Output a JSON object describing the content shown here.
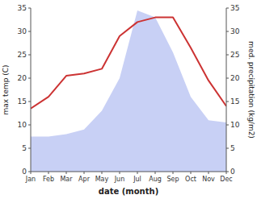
{
  "chart_data": {
    "type": "line",
    "categories": [
      "Jan",
      "Feb",
      "Mar",
      "Apr",
      "May",
      "Jun",
      "Jul",
      "Aug",
      "Sep",
      "Oct",
      "Nov",
      "Dec"
    ],
    "xlabel": "date (month)",
    "ylabel": "max temp (C)",
    "y2label": "med. precipitation (kg/m2)",
    "ylim": [
      0,
      35
    ],
    "yticks": [
      0,
      5,
      10,
      15,
      20,
      25,
      30,
      35
    ],
    "y2lim": [
      0,
      35
    ],
    "y2ticks": [
      0,
      5,
      10,
      15,
      20,
      25,
      30,
      35
    ],
    "grid": false,
    "series": [
      {
        "type": "area",
        "color": "#c8d0f5",
        "axis": "y2",
        "values": [
          7.5,
          7.5,
          8.0,
          9.0,
          13.0,
          20.0,
          34.5,
          33.0,
          25.5,
          16.0,
          11.0,
          10.5
        ]
      },
      {
        "type": "line",
        "color": "#cc3333",
        "values": [
          13.5,
          16.0,
          20.5,
          21.0,
          22.0,
          29.0,
          32.0,
          33.0,
          33.0,
          26.5,
          19.5,
          14.0
        ]
      }
    ]
  }
}
